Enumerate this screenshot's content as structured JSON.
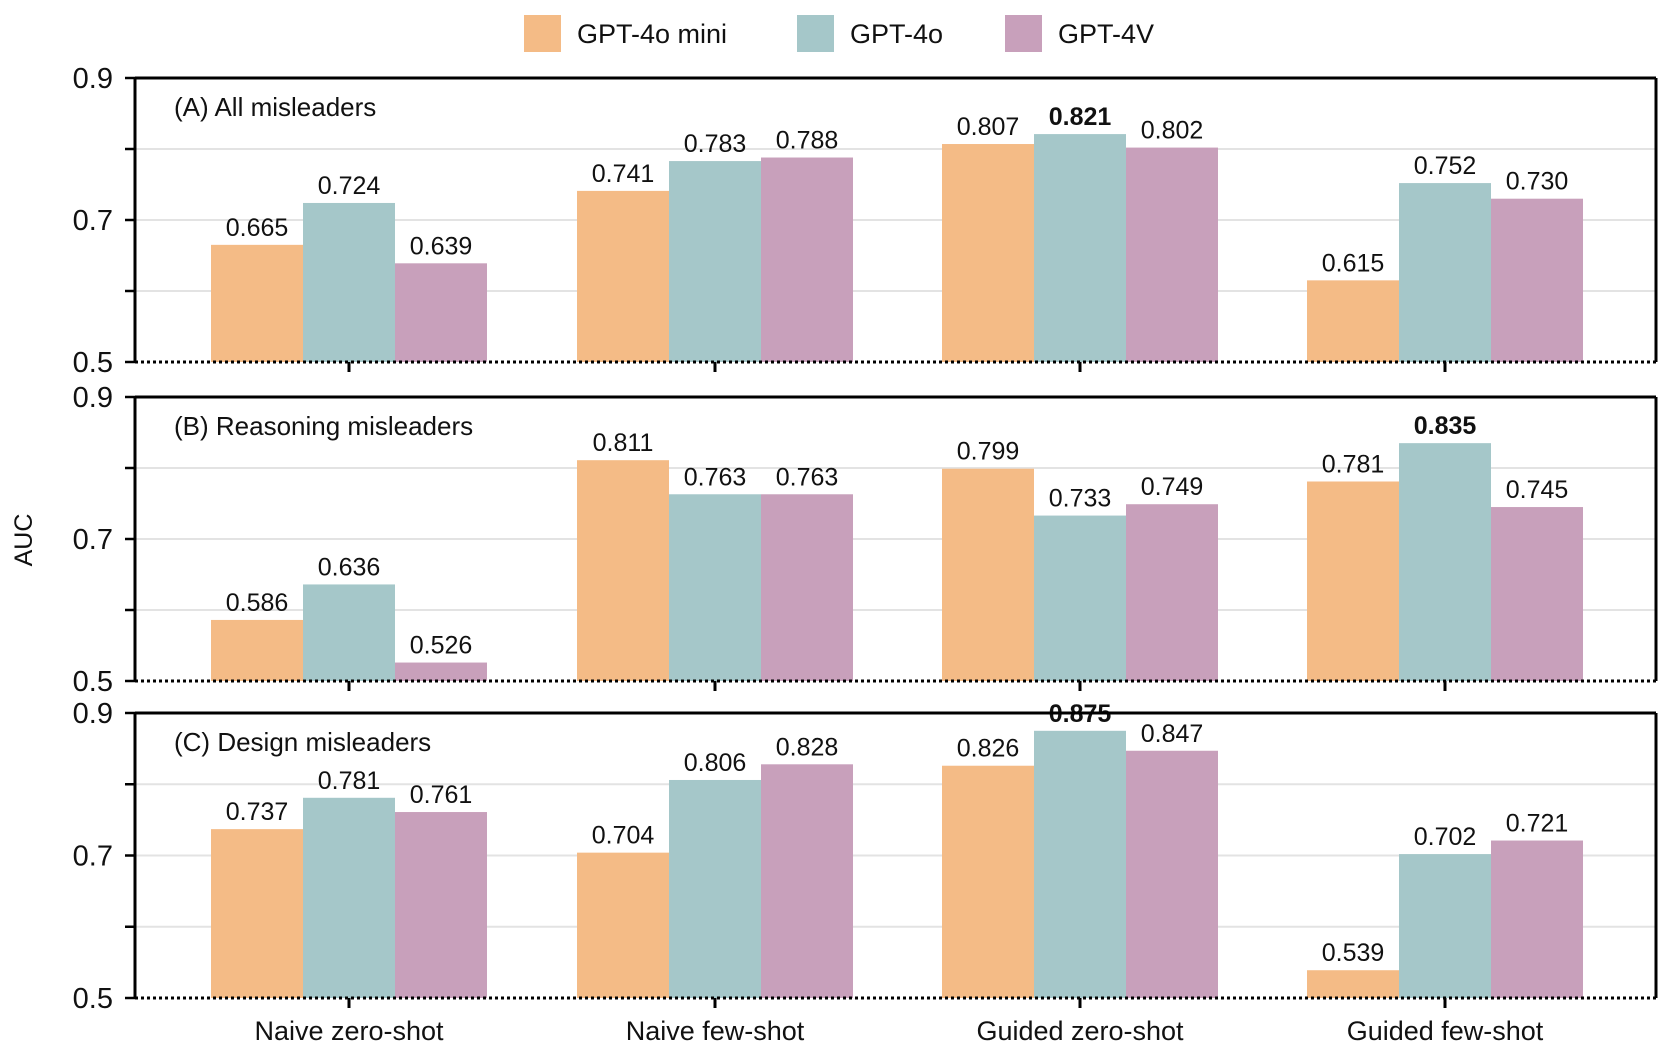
{
  "chart_data": {
    "type": "bar",
    "ylabel": "AUC",
    "categories": [
      "Naive zero-shot",
      "Naive few-shot",
      "Guided zero-shot",
      "Guided few-shot"
    ],
    "series_names": [
      "GPT-4o mini",
      "GPT-4o",
      "GPT-4V"
    ],
    "colors": {
      "GPT-4o mini": "#f4bb86",
      "GPT-4o": "#a5c7c9",
      "GPT-4V": "#c8a0bb"
    },
    "legend_position": "top-center",
    "ylim": [
      0.5,
      0.9
    ],
    "yticks": [
      "0.5",
      "0.7",
      "0.9"
    ],
    "grid": true,
    "panels": [
      {
        "title": "(A) All misleaders",
        "series": [
          {
            "name": "GPT-4o mini",
            "values": [
              0.665,
              0.741,
              0.807,
              0.615
            ],
            "labels": [
              "0.665",
              "0.741",
              "0.807",
              "0.615"
            ]
          },
          {
            "name": "GPT-4o",
            "values": [
              0.724,
              0.783,
              0.821,
              0.752
            ],
            "labels": [
              "0.724",
              "0.783",
              "0.821",
              "0.752"
            ]
          },
          {
            "name": "GPT-4V",
            "values": [
              0.639,
              0.788,
              0.802,
              0.73
            ],
            "labels": [
              "0.639",
              "0.788",
              "0.802",
              "0.730"
            ]
          }
        ],
        "highlight": {
          "series": 1,
          "category": 2
        }
      },
      {
        "title": "(B) Reasoning misleaders",
        "series": [
          {
            "name": "GPT-4o mini",
            "values": [
              0.586,
              0.811,
              0.799,
              0.781
            ],
            "labels": [
              "0.586",
              "0.811",
              "0.799",
              "0.781"
            ]
          },
          {
            "name": "GPT-4o",
            "values": [
              0.636,
              0.763,
              0.733,
              0.835
            ],
            "labels": [
              "0.636",
              "0.763",
              "0.733",
              "0.835"
            ]
          },
          {
            "name": "GPT-4V",
            "values": [
              0.526,
              0.763,
              0.749,
              0.745
            ],
            "labels": [
              "0.526",
              "0.763",
              "0.749",
              "0.745"
            ]
          }
        ],
        "highlight": {
          "series": 1,
          "category": 3
        }
      },
      {
        "title": "(C) Design misleaders",
        "series": [
          {
            "name": "GPT-4o mini",
            "values": [
              0.737,
              0.704,
              0.826,
              0.539
            ],
            "labels": [
              "0.737",
              "0.704",
              "0.826",
              "0.539"
            ]
          },
          {
            "name": "GPT-4o",
            "values": [
              0.781,
              0.806,
              0.875,
              0.702
            ],
            "labels": [
              "0.781",
              "0.806",
              "0.875",
              "0.702"
            ]
          },
          {
            "name": "GPT-4V",
            "values": [
              0.761,
              0.828,
              0.847,
              0.721
            ],
            "labels": [
              "0.761",
              "0.828",
              "0.847",
              "0.721"
            ]
          }
        ],
        "highlight": {
          "series": 1,
          "category": 2
        }
      }
    ]
  }
}
